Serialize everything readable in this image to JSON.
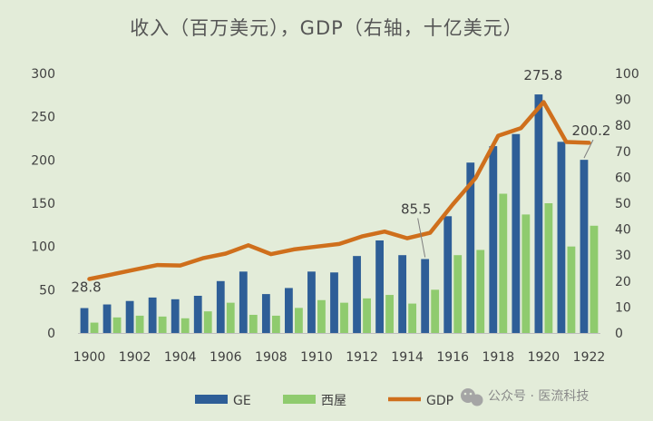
{
  "colors": {
    "background": "#e3ecd9",
    "ge": "#2e5e97",
    "westinghouse": "#8fcb6e",
    "gdp": "#cf6f1c",
    "text": "#404040"
  },
  "chart_data": {
    "type": "bar",
    "title": "收入（百万美元），GDP（右轴，十亿美元）",
    "categories": [
      "1900",
      "1901",
      "1902",
      "1903",
      "1904",
      "1905",
      "1906",
      "1907",
      "1908",
      "1909",
      "1910",
      "1911",
      "1912",
      "1913",
      "1914",
      "1915",
      "1916",
      "1917",
      "1918",
      "1919",
      "1920",
      "1921",
      "1922"
    ],
    "x_tick_labels": [
      "1900",
      "1902",
      "1904",
      "1906",
      "1908",
      "1910",
      "1912",
      "1914",
      "1916",
      "1918",
      "1920",
      "1922"
    ],
    "y_left": {
      "min": 0,
      "max": 300,
      "ticks": [
        "0",
        "50",
        "100",
        "150",
        "200",
        "250",
        "300"
      ]
    },
    "y_right": {
      "min": 0,
      "max": 100,
      "ticks": [
        "0",
        "10",
        "20",
        "30",
        "40",
        "50",
        "60",
        "70",
        "80",
        "90",
        "100"
      ]
    },
    "series": [
      {
        "name": "GE",
        "type": "bar",
        "axis": "left",
        "values": [
          28.8,
          33,
          37,
          41,
          39,
          43,
          60,
          71,
          45,
          52,
          71,
          70,
          89,
          107,
          90,
          85.5,
          135,
          197,
          216,
          230,
          275.8,
          221,
          200.2
        ]
      },
      {
        "name": "西屋",
        "type": "bar",
        "axis": "left",
        "values": [
          12,
          18,
          20,
          19,
          17,
          25,
          35,
          21,
          20,
          29,
          38,
          35,
          40,
          44,
          34,
          50,
          90,
          96,
          161,
          137,
          150,
          100,
          124
        ]
      },
      {
        "name": "GDP",
        "type": "line",
        "axis": "right",
        "values": [
          20.8,
          22.6,
          24.4,
          26.2,
          26,
          28.8,
          30.6,
          33.8,
          30.4,
          32.2,
          33.3,
          34.3,
          37.2,
          39.1,
          36.5,
          38.6,
          49.5,
          59.7,
          76,
          78.9,
          89,
          73.6,
          73.3
        ]
      }
    ],
    "data_labels": [
      {
        "series": "GE",
        "category": "1900",
        "text": "28.8"
      },
      {
        "series": "GE",
        "category": "1915",
        "text": "85.5"
      },
      {
        "series": "GE",
        "category": "1920",
        "text": "275.8"
      },
      {
        "series": "GE",
        "category": "1922",
        "text": "200.2"
      }
    ],
    "legend": {
      "placement": "bottom",
      "entries": [
        "GE",
        "西屋",
        "GDP"
      ]
    },
    "grid": false
  },
  "watermark": {
    "text": "公众号 · 医流科技"
  }
}
